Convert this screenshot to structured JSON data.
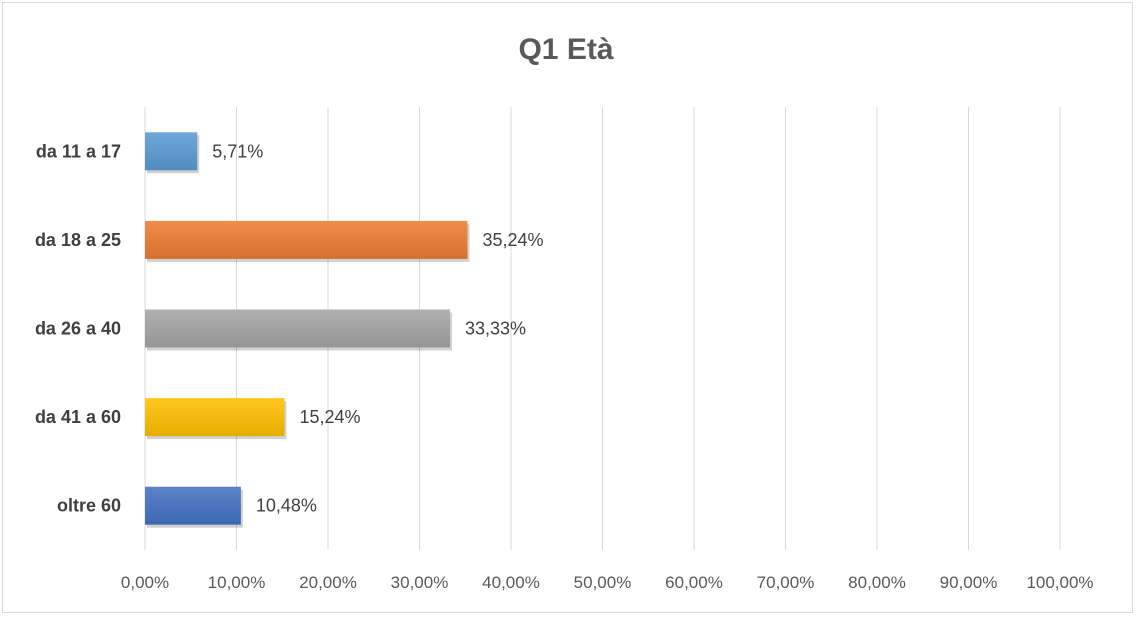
{
  "chart_data": {
    "type": "bar",
    "orientation": "horizontal",
    "title": "Q1 Età",
    "categories": [
      "da 11 a 17",
      "da 18 a 25",
      "da 26 a 40",
      "da 41 a 60",
      "oltre 60"
    ],
    "values": [
      5.71,
      35.24,
      33.33,
      15.24,
      10.48
    ],
    "value_labels": [
      "5,71%",
      "35,24%",
      "33,33%",
      "15,24%",
      "10,48%"
    ],
    "colors": [
      "#5b9bd5",
      "#ed7d31",
      "#a5a5a5",
      "#ffc000",
      "#4472c4"
    ],
    "xlim": [
      0,
      100
    ],
    "x_ticks": [
      0,
      10,
      20,
      30,
      40,
      50,
      60,
      70,
      80,
      90,
      100
    ],
    "x_tick_labels": [
      "0,00%",
      "10,00%",
      "20,00%",
      "30,00%",
      "40,00%",
      "50,00%",
      "60,00%",
      "70,00%",
      "80,00%",
      "90,00%",
      "100,00%"
    ],
    "grid": true,
    "legend": false,
    "xlabel": "",
    "ylabel": ""
  }
}
